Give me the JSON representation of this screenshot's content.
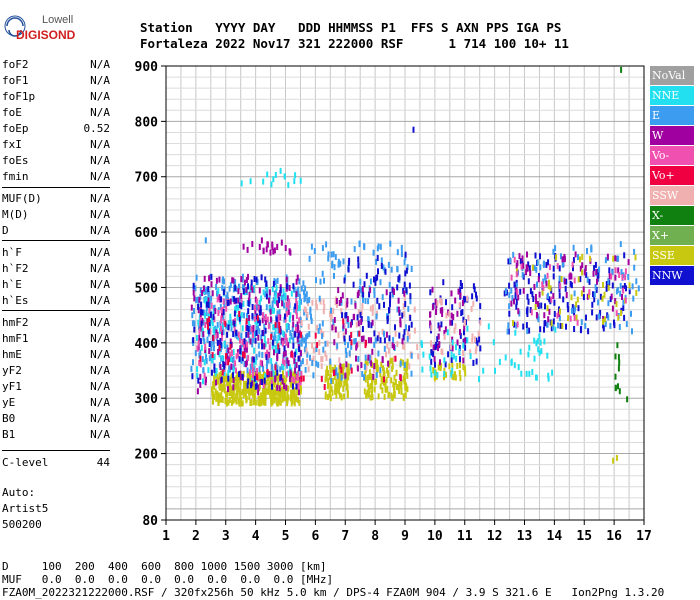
{
  "logo": {
    "line1": "Lowell",
    "line2": "DIGISONDE"
  },
  "header": {
    "line1": "Station   YYYY DAY   DDD HHMMSS P1  FFS S AXN PPS IGA PS",
    "line2": "Fortaleza 2022 Nov17 321 222000 RSF      1 714 100 10+ 11"
  },
  "params": [
    {
      "name": "foF2",
      "value": "N/A"
    },
    {
      "name": "foF1",
      "value": "N/A"
    },
    {
      "name": "foF1p",
      "value": "N/A"
    },
    {
      "name": "foE",
      "value": "N/A"
    },
    {
      "name": "foEp",
      "value": "0.52"
    },
    {
      "name": "fxI",
      "value": "N/A"
    },
    {
      "name": "foEs",
      "value": "N/A"
    },
    {
      "name": "fmin",
      "value": "N/A"
    },
    {
      "name": "MUF(D)",
      "value": "N/A"
    },
    {
      "name": "M(D)",
      "value": "N/A"
    },
    {
      "name": "D",
      "value": "N/A"
    },
    {
      "name": "h`F",
      "value": "N/A"
    },
    {
      "name": "h`F2",
      "value": "N/A"
    },
    {
      "name": "h`E",
      "value": "N/A"
    },
    {
      "name": "h`Es",
      "value": "N/A"
    },
    {
      "name": "hmF2",
      "value": "N/A"
    },
    {
      "name": "hmF1",
      "value": "N/A"
    },
    {
      "name": "hmE",
      "value": "N/A"
    },
    {
      "name": "yF2",
      "value": "N/A"
    },
    {
      "name": "yF1",
      "value": "N/A"
    },
    {
      "name": "yE",
      "value": "N/A"
    },
    {
      "name": "B0",
      "value": "N/A"
    },
    {
      "name": "B1",
      "value": "N/A"
    },
    {
      "name": "C-level",
      "value": "44"
    }
  ],
  "autoscaling": {
    "line1": "Auto:",
    "line2": "Artist5",
    "line3": "500200"
  },
  "legend": [
    {
      "label": "NoVal",
      "color": "#a0a0a0"
    },
    {
      "label": "NNE",
      "color": "#22e0f0"
    },
    {
      "label": "E",
      "color": "#3c9cf0"
    },
    {
      "label": "W",
      "color": "#a000a0"
    },
    {
      "label": "Vo-",
      "color": "#f050b0"
    },
    {
      "label": "Vo+",
      "color": "#f00040"
    },
    {
      "label": "SSW",
      "color": "#f0b0b0"
    },
    {
      "label": "X-",
      "color": "#108010"
    },
    {
      "label": "X+",
      "color": "#70b050"
    },
    {
      "label": "SSE",
      "color": "#c8c810"
    },
    {
      "label": "NNW",
      "color": "#1010d0"
    }
  ],
  "footer": {
    "d_row": "D     100  200  400  600  800 1000 1500 3000 [km]",
    "muf_row": "MUF   0.0  0.0  0.0  0.0  0.0  0.0  0.0  0.0 [MHz]",
    "info_row": "FZA0M_2022321222000.RSF / 320fx256h 50 kHz 5.0 km / DPS-4 FZA0M 904 / 3.9 S 321.6 E   Ion2Png 1.3.20"
  },
  "chart_data": {
    "type": "scatter",
    "xlim": [
      1,
      17
    ],
    "ylim": [
      80,
      900
    ],
    "x_ticks": [
      1,
      2,
      3,
      4,
      5,
      6,
      7,
      8,
      9,
      10,
      11,
      12,
      13,
      14,
      15,
      16,
      17
    ],
    "y_ticks": [
      80,
      200,
      300,
      400,
      500,
      600,
      700,
      800,
      900
    ],
    "grid": true,
    "clusters": [
      {
        "series": "SSE",
        "x": [
          2.5,
          5.5
        ],
        "y": [
          290,
          345
        ],
        "density": 420
      },
      {
        "series": "SSE",
        "x": [
          6.3,
          7.1
        ],
        "y": [
          300,
          360
        ],
        "density": 90
      },
      {
        "series": "SSE",
        "x": [
          7.6,
          9.1
        ],
        "y": [
          300,
          370
        ],
        "density": 130
      },
      {
        "series": "SSE",
        "x": [
          9.8,
          11.0
        ],
        "y": [
          335,
          360
        ],
        "density": 30
      },
      {
        "series": "E",
        "x": [
          1.8,
          5.7
        ],
        "y": [
          350,
          520
        ],
        "density": 300
      },
      {
        "series": "NNE",
        "x": [
          2.0,
          5.5
        ],
        "y": [
          330,
          500
        ],
        "density": 140
      },
      {
        "series": "W",
        "x": [
          1.8,
          5.5
        ],
        "y": [
          310,
          520
        ],
        "density": 170
      },
      {
        "series": "Vo-",
        "x": [
          2.0,
          5.5
        ],
        "y": [
          320,
          480
        ],
        "density": 110
      },
      {
        "series": "NNW",
        "x": [
          1.8,
          5.5
        ],
        "y": [
          320,
          520
        ],
        "density": 120
      },
      {
        "series": "SSW",
        "x": [
          5.5,
          9.5
        ],
        "y": [
          350,
          480
        ],
        "density": 90
      },
      {
        "series": "E",
        "x": [
          5.5,
          9.2
        ],
        "y": [
          330,
          580
        ],
        "density": 150
      },
      {
        "series": "NNW",
        "x": [
          6.8,
          9.2
        ],
        "y": [
          400,
          560
        ],
        "density": 70
      },
      {
        "series": "W",
        "x": [
          6.5,
          9.0
        ],
        "y": [
          330,
          500
        ],
        "density": 60
      },
      {
        "series": "Vo+",
        "x": [
          2.0,
          9.0
        ],
        "y": [
          320,
          460
        ],
        "density": 45
      },
      {
        "series": "NNW",
        "x": [
          9.8,
          11.5
        ],
        "y": [
          360,
          510
        ],
        "density": 60
      },
      {
        "series": "W",
        "x": [
          9.8,
          11.0
        ],
        "y": [
          360,
          500
        ],
        "density": 40
      },
      {
        "series": "SSW",
        "x": [
          9.8,
          11.5
        ],
        "y": [
          380,
          480
        ],
        "density": 30
      },
      {
        "series": "NNE",
        "x": [
          9.5,
          14.0
        ],
        "y": [
          330,
          430
        ],
        "density": 60
      },
      {
        "series": "NNW",
        "x": [
          12.3,
          16.5
        ],
        "y": [
          420,
          560
        ],
        "density": 130
      },
      {
        "series": "E",
        "x": [
          12.3,
          16.8
        ],
        "y": [
          420,
          580
        ],
        "density": 90
      },
      {
        "series": "W",
        "x": [
          12.5,
          16.5
        ],
        "y": [
          440,
          560
        ],
        "density": 60
      },
      {
        "series": "SSE",
        "x": [
          12.5,
          16.8
        ],
        "y": [
          430,
          560
        ],
        "density": 40
      },
      {
        "series": "Vo-",
        "x": [
          12.5,
          16.5
        ],
        "y": [
          430,
          550
        ],
        "density": 30
      },
      {
        "series": "X-",
        "x": [
          15.9,
          16.2
        ],
        "y": [
          310,
          400
        ],
        "density": 10
      },
      {
        "series": "NNE",
        "x": [
          4.2,
          5.5
        ],
        "y": [
          685,
          712
        ],
        "density": 12
      },
      {
        "series": "W",
        "x": [
          3.5,
          5.2
        ],
        "y": [
          560,
          585
        ],
        "density": 20
      },
      {
        "series": "SSE",
        "x": [
          15.9,
          16.1
        ],
        "y": [
          180,
          200
        ],
        "density": 2
      }
    ],
    "extra_points": [
      {
        "series": "NNW",
        "x": 9.25,
        "y": 785
      },
      {
        "series": "X-",
        "x": 16.2,
        "y": 893
      },
      {
        "series": "X-",
        "x": 16.4,
        "y": 298
      },
      {
        "series": "E",
        "x": 2.3,
        "y": 585
      },
      {
        "series": "NNE",
        "x": 3.5,
        "y": 688
      },
      {
        "series": "NNE",
        "x": 3.8,
        "y": 692
      }
    ]
  }
}
